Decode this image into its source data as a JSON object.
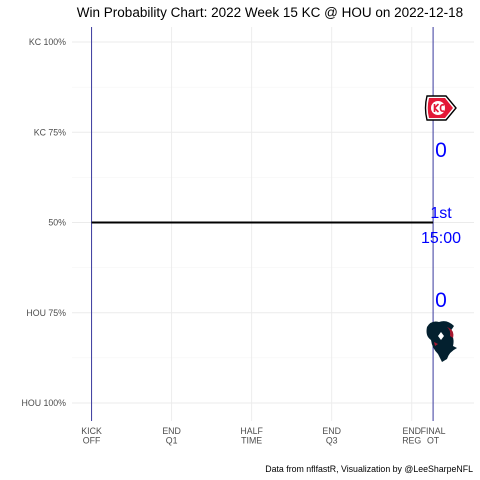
{
  "chart_data": {
    "type": "line",
    "title": "Win Probability Chart: 2022 Week 15 KC @ HOU on 2022-12-18",
    "caption": "Data from nflfastR, Visualization by @LeeSharpeNFL",
    "y_ticks": [
      {
        "label": "KC 100%",
        "value": 1.0
      },
      {
        "label": "KC 75%",
        "value": 0.75
      },
      {
        "label": "50%",
        "value": 0.5
      },
      {
        "label": "HOU 75%",
        "value": 0.25
      },
      {
        "label": "HOU 100%",
        "value": 0.0
      }
    ],
    "ylim": [
      0,
      1
    ],
    "x_ticks": [
      {
        "lines": [
          "KICK",
          "OFF"
        ],
        "value": 0
      },
      {
        "lines": [
          "END",
          "Q1"
        ],
        "value": 900
      },
      {
        "lines": [
          "HALF",
          "TIME"
        ],
        "value": 1800
      },
      {
        "lines": [
          "END",
          "Q3"
        ],
        "value": 2700
      },
      {
        "lines": [
          "END",
          "REG"
        ],
        "value": 3600
      },
      {
        "lines": [
          "FINAL",
          "OT"
        ],
        "value": 3840
      }
    ],
    "xlim": [
      -220,
      4300
    ],
    "ref_lines_x": [
      0,
      3840
    ],
    "series": [
      {
        "x": [
          0,
          3840
        ],
        "y": [
          0.5,
          0.5
        ],
        "color": "#000000"
      }
    ],
    "grid": true
  },
  "scoreboard": {
    "away_score": "0",
    "home_score": "0",
    "period": "1st",
    "clock": "15:00",
    "away_logo": "kc-chiefs-arrowhead-logo",
    "home_logo": "hou-texans-bull-logo",
    "score_color": "#0000ff"
  },
  "colors": {
    "reference_line": "#3b3b9e",
    "grid": "#ebebeb",
    "kc_red": "#e31837",
    "hou_navy": "#03202f",
    "hou_red": "#a71930"
  }
}
